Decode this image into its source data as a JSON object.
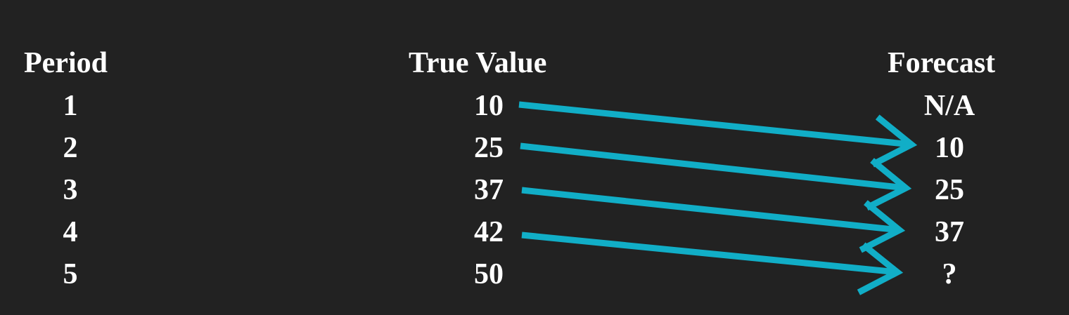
{
  "headers": {
    "period": "Period",
    "true_value": "True Value",
    "forecast": "Forecast"
  },
  "rows": [
    {
      "period": "1",
      "true_value": "10",
      "forecast": "N/A"
    },
    {
      "period": "2",
      "true_value": "25",
      "forecast": "10"
    },
    {
      "period": "3",
      "true_value": "37",
      "forecast": "25"
    },
    {
      "period": "4",
      "true_value": "42",
      "forecast": "37"
    },
    {
      "period": "5",
      "true_value": "50",
      "forecast": "?"
    }
  ],
  "colors": {
    "background": "#222222",
    "text": "#ffffff",
    "arrow": "#11aec7"
  }
}
